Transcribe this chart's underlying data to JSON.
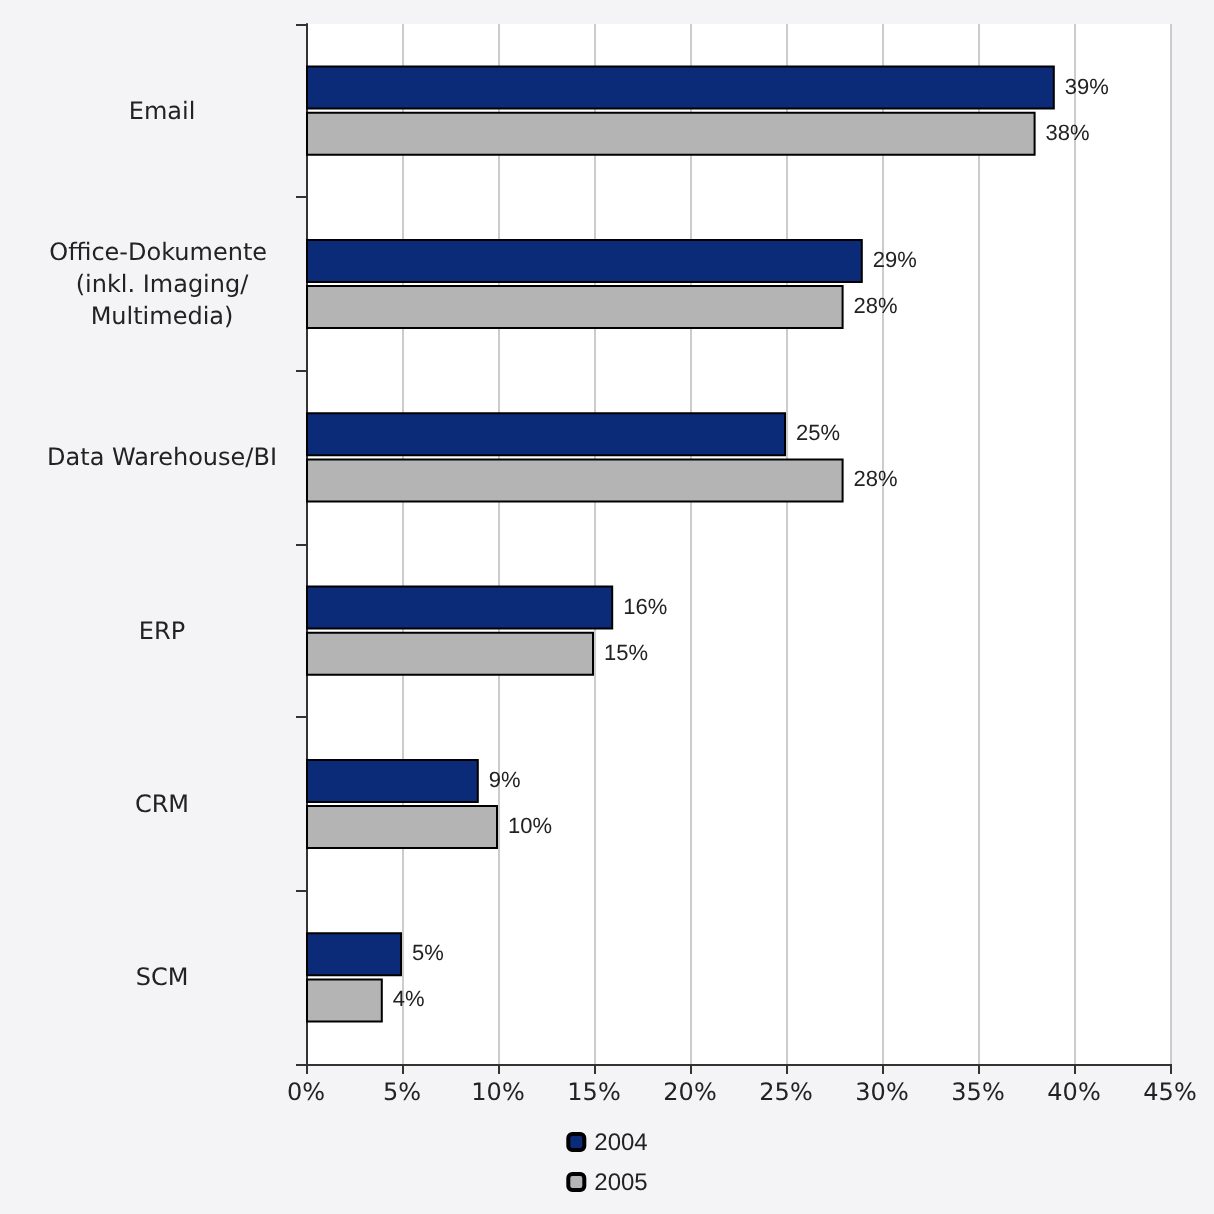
{
  "chart_data": {
    "type": "bar",
    "orientation": "horizontal",
    "categories": [
      "Email",
      "Office-Dokumente (inkl. Imaging/Multimedia)",
      "Data Warehouse/BI",
      "ERP",
      "CRM",
      "SCM"
    ],
    "series": [
      {
        "name": "2004",
        "color": "#0b2a78",
        "values": [
          39,
          29,
          25,
          16,
          9,
          5
        ],
        "value_labels": [
          "39%",
          "29%",
          "25%",
          "16%",
          "9%",
          "5%"
        ]
      },
      {
        "name": "2005",
        "color": "#b4b4b4",
        "values": [
          38,
          28,
          28,
          15,
          10,
          4
        ],
        "value_labels": [
          "38%",
          "28%",
          "28%",
          "15%",
          "10%",
          "4%"
        ]
      }
    ],
    "xlim": [
      0,
      45
    ],
    "xticks": [
      {
        "value": 0,
        "label": "0%"
      },
      {
        "value": 5,
        "label": "5%"
      },
      {
        "value": 10,
        "label": "10%"
      },
      {
        "value": 15,
        "label": "15%"
      },
      {
        "value": 20,
        "label": "20%"
      },
      {
        "value": 25,
        "label": "25%"
      },
      {
        "value": 30,
        "label": "30%"
      },
      {
        "value": 35,
        "label": "35%"
      },
      {
        "value": 40,
        "label": "40%"
      },
      {
        "value": 45,
        "label": "45%"
      }
    ],
    "grid": "x",
    "legend": "bottom"
  }
}
